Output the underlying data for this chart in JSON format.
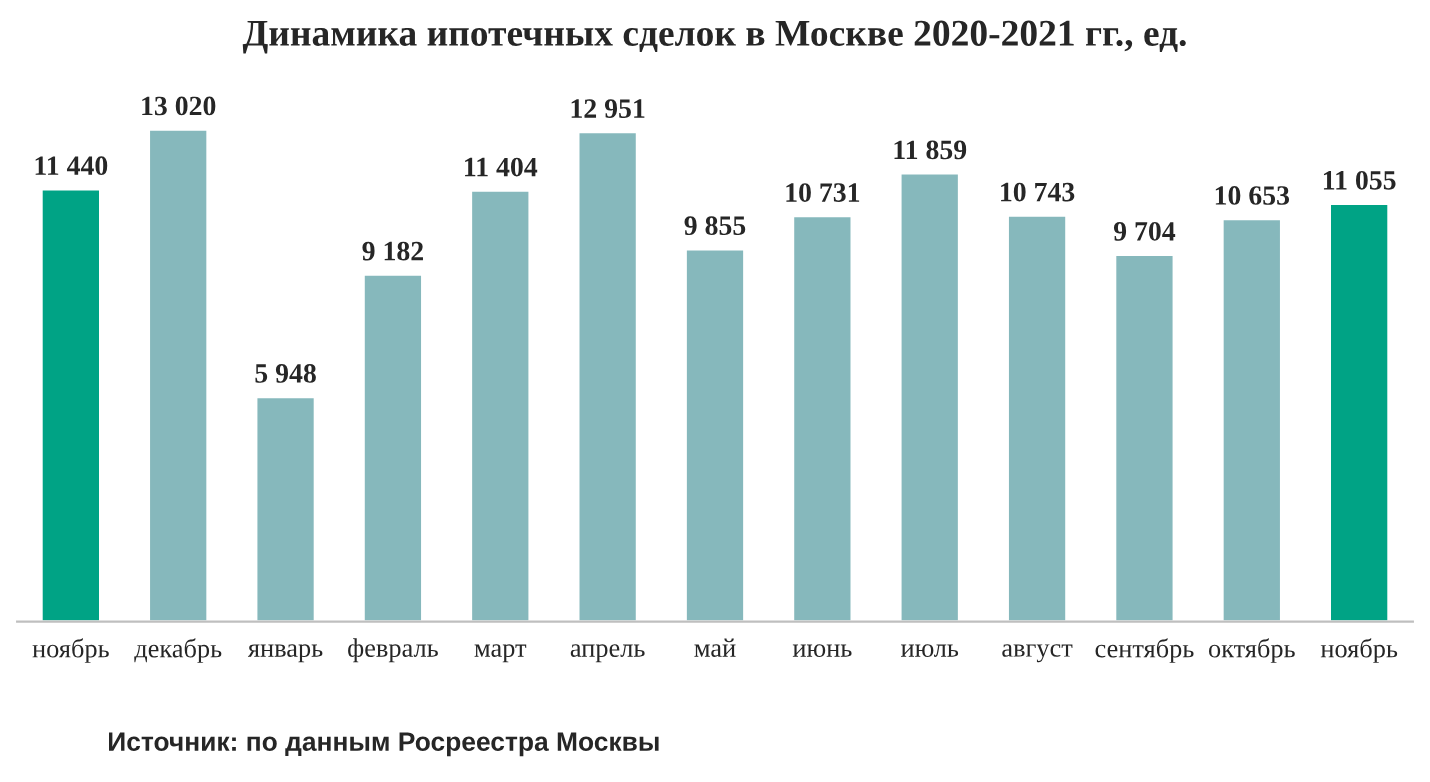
{
  "chart_data": {
    "type": "bar",
    "title": "Динамика ипотечных сделок в Москве 2020-2021 гг., ед.",
    "categories": [
      "ноябрь",
      "декабрь",
      "январь",
      "февраль",
      "март",
      "апрель",
      "май",
      "июнь",
      "июль",
      "август",
      "сентябрь",
      "октябрь",
      "ноябрь"
    ],
    "values": [
      11440,
      13020,
      5948,
      9182,
      11404,
      12951,
      9855,
      10731,
      11859,
      10743,
      9704,
      10653,
      11055
    ],
    "value_labels": [
      "11 440",
      "13 020",
      "5 948",
      "9 182",
      "11 404",
      "12 951",
      "9 855",
      "10 731",
      "11 859",
      "10 743",
      "9 704",
      "10 653",
      "11 055"
    ],
    "colors": [
      "#00a385",
      "#86b8bc",
      "#86b8bc",
      "#86b8bc",
      "#86b8bc",
      "#86b8bc",
      "#86b8bc",
      "#86b8bc",
      "#86b8bc",
      "#86b8bc",
      "#86b8bc",
      "#86b8bc",
      "#00a385"
    ],
    "annotations": [
      "Источник: по данным Росреестра Москвы"
    ],
    "grid": false,
    "legend": false
  }
}
